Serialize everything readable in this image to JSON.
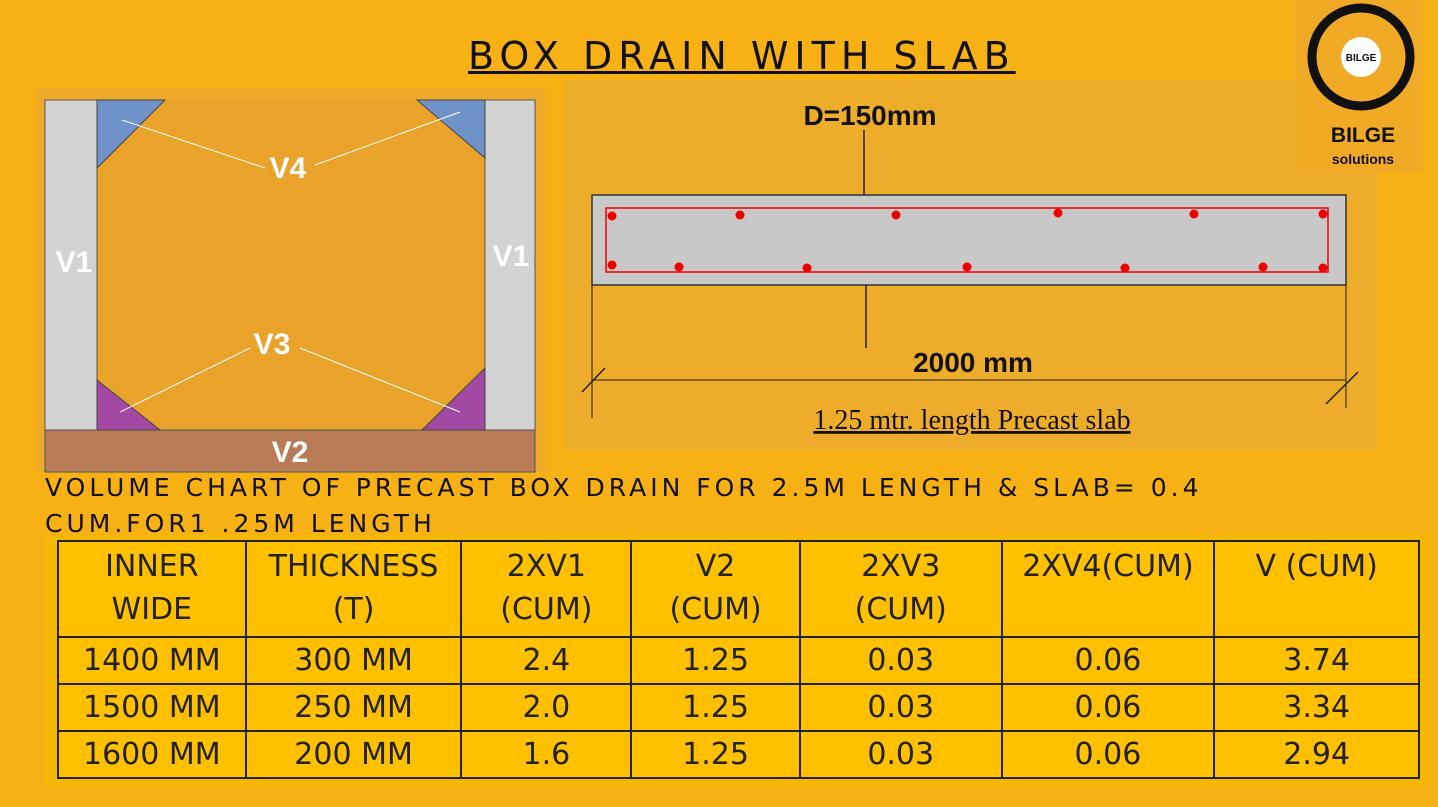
{
  "title": "BOX DRAIN WITH SLAB",
  "logo": {
    "badge": "BILGE",
    "name": "BILGE",
    "tagline": "solutions"
  },
  "box_diagram": {
    "v4": "V4",
    "v1_left": "V1",
    "v1_right": "V1",
    "v3": "V3",
    "v2": "V2"
  },
  "slab_diagram": {
    "depth": "D=150mm",
    "width": "2000 mm",
    "caption": "1.25 mtr. length Precast slab"
  },
  "chart_caption": "VOLUME CHART OF PRECAST BOX DRAIN FOR 2.5M LENGTH & SLAB= 0.4 CUM.FOR1 .25M LENGTH",
  "table": {
    "header": [
      "INNER\nWIDE",
      "THICKNESS\n(T)",
      "2XV1\n(CUM)",
      "V2\n(CUM)",
      "2XV3\n(CUM)",
      "2XV4(CUM)",
      "V (CUM)"
    ],
    "rows": [
      [
        "1400 MM",
        "300 MM",
        "2.4",
        "1.25",
        "0.03",
        "0.06",
        "3.74"
      ],
      [
        "1500 MM",
        "250 MM",
        "2.0",
        "1.25",
        "0.03",
        "0.06",
        "3.34"
      ],
      [
        "1600 MM",
        "200 MM",
        "1.6",
        "1.25",
        "0.03",
        "0.06",
        "2.94"
      ]
    ]
  }
}
